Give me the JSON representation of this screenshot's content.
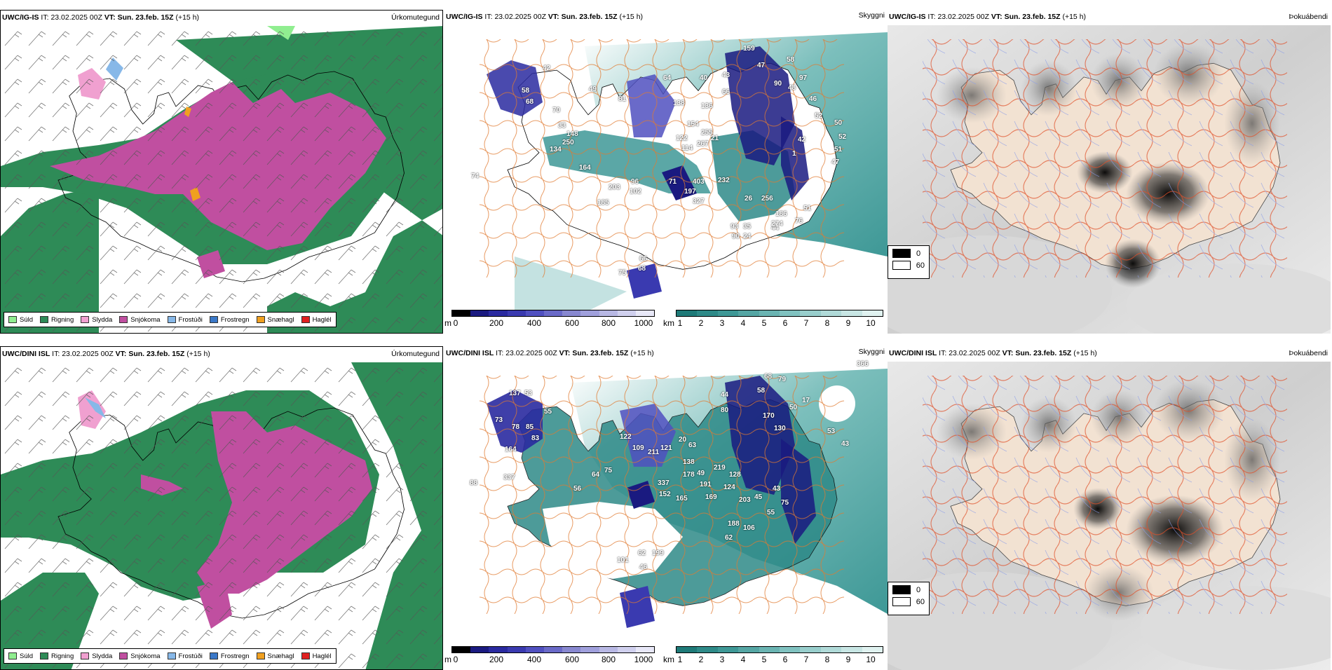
{
  "rows": [
    {
      "model_title": "UWC/IG-IS",
      "it_label": "IT:",
      "it_value": "23.02.2025 00Z",
      "vt_label": "VT:",
      "vt_value": "Sun. 23.feb. 15Z",
      "lead": "(+15 h)",
      "panels": {
        "precip": "Úrkomutegund",
        "visibility": "Skyggni",
        "fog": "Þokuábendi"
      },
      "cloud_labels": [
        "159",
        "47",
        "58",
        "90",
        "48",
        "97",
        "64",
        "40",
        "43",
        "66",
        "46",
        "52",
        "50",
        "52",
        "51",
        "47",
        "49",
        "42",
        "58",
        "68",
        "70",
        "33",
        "250",
        "134",
        "164",
        "203",
        "96",
        "102",
        "185",
        "71",
        "403",
        "197",
        "327",
        "232",
        "26",
        "256",
        "93",
        "35",
        "90",
        "24",
        "44",
        "186",
        "274",
        "51",
        "76",
        "42",
        "1",
        "81",
        "138",
        "136",
        "122",
        "154",
        "255",
        "114",
        "267",
        "21",
        "148",
        "74",
        "66",
        "75",
        "68"
      ]
    },
    {
      "model_title": "UWC/DINI ISL",
      "it_label": "IT:",
      "it_value": "23.02.2025 00Z",
      "vt_label": "VT:",
      "vt_value": "Sun. 23.feb. 15Z",
      "lead": "(+15 h)",
      "panels": {
        "precip": "Úrkomutegund",
        "visibility": "Skyggni",
        "fog": "Þokuábendi"
      },
      "cloud_labels": [
        "366",
        "68",
        "79",
        "58",
        "44",
        "80",
        "50",
        "17",
        "170",
        "130",
        "53",
        "43",
        "137",
        "53",
        "55",
        "73",
        "78",
        "85",
        "83",
        "164",
        "122",
        "109",
        "211",
        "121",
        "20",
        "63",
        "138",
        "49",
        "219",
        "191",
        "128",
        "124",
        "203",
        "45",
        "43",
        "75",
        "55",
        "56",
        "64",
        "337",
        "152",
        "178",
        "165",
        "169",
        "188",
        "62",
        "106",
        "62",
        "199",
        "46",
        "101",
        "88",
        "337",
        "75"
      ]
    }
  ],
  "precip_legend": [
    {
      "label": "Súld",
      "color": "#90ee90"
    },
    {
      "label": "Rigning",
      "color": "#2e8b57"
    },
    {
      "label": "Slydda",
      "color": "#f0a0d0"
    },
    {
      "label": "Snjókoma",
      "color": "#c04fa0"
    },
    {
      "label": "Frostúði",
      "color": "#87b8e8"
    },
    {
      "label": "Frostregn",
      "color": "#3a78c8"
    },
    {
      "label": "Snæhagl",
      "color": "#f0a020"
    },
    {
      "label": "Haglél",
      "color": "#e02020"
    }
  ],
  "cloud_base_scale": {
    "unit": "m",
    "ticks": [
      "0",
      "200",
      "400",
      "600",
      "800",
      "1000"
    ],
    "colors": [
      "#000000",
      "#1a1a80",
      "#2a2aa0",
      "#3a3ab0",
      "#5050c0",
      "#6a6ac8",
      "#8888d0",
      "#a0a0dc",
      "#b8b8e4",
      "#d0d0ee",
      "#e8e8f8"
    ]
  },
  "visibility_scale": {
    "unit": "km",
    "ticks": [
      "1",
      "2",
      "3",
      "4",
      "5",
      "6",
      "7",
      "8",
      "9",
      "10"
    ],
    "colors": [
      "#1e7a78",
      "#2e8a88",
      "#3e9896",
      "#55a6a4",
      "#6ab4b2",
      "#80c2c0",
      "#98cecc",
      "#b0dad8",
      "#c8e6e4",
      "#e0f2f0"
    ]
  },
  "fog_legend": [
    {
      "label": "0",
      "color": "#000000"
    },
    {
      "label": "60",
      "color": "#ffffff"
    }
  ]
}
